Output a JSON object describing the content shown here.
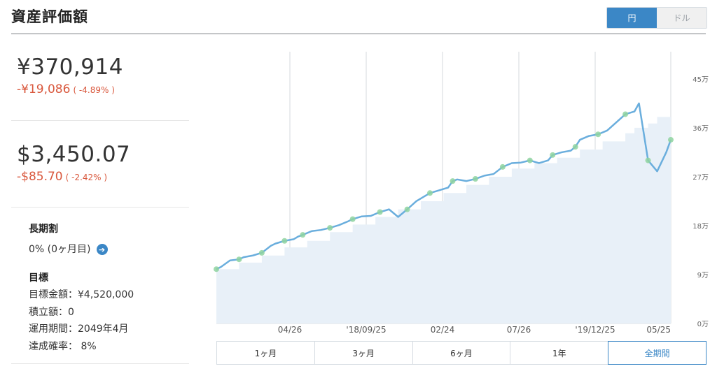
{
  "title": "資産評価額",
  "currency_toggle": {
    "options": [
      "円",
      "ドル"
    ],
    "selected": "円"
  },
  "jpy": {
    "value": "¥370,914",
    "change": "-¥19,086",
    "change_pct": "( -4.89% )"
  },
  "usd": {
    "value": "$3,450.07",
    "change": "-$85.70",
    "change_pct": "( -2.42% )"
  },
  "long_term": {
    "title": "長期割",
    "text": "0% (0ヶ月目)"
  },
  "goal": {
    "title": "目標",
    "lines": [
      "目標金額：¥4,520,000",
      "積立額：0",
      "運用期間：2049年4月",
      "達成確率： 8%"
    ]
  },
  "periods": [
    "1ヶ月",
    "3ヶ月",
    "6ヶ月",
    "1年",
    "全期間"
  ],
  "selected_period": "全期間",
  "colors": {
    "accent": "#3b87c6",
    "negative": "#d9573c",
    "line": "#6aaedd",
    "area": "#e8f0f8",
    "marker": "#8fd3a0"
  },
  "chart_data": {
    "type": "area",
    "x_tick_labels": [
      "04/26",
      "'18/09/25",
      "02/24",
      "07/26",
      "'19/12/25",
      "05/25"
    ],
    "y_tick_labels": [
      "0万",
      "9万",
      "18万",
      "27万",
      "36万",
      "45万"
    ],
    "ylim": [
      0,
      450000
    ],
    "grid": "vertical",
    "series": [
      {
        "role": "valuation",
        "x": [
          0,
          1,
          3,
          5,
          6,
          8,
          10,
          12,
          13,
          15,
          17,
          18,
          19,
          21,
          23,
          25,
          27,
          29,
          30,
          32,
          34,
          36,
          38,
          40,
          42,
          44,
          45,
          47,
          49,
          51,
          52,
          53,
          55,
          57,
          59,
          61,
          63,
          65,
          67,
          69,
          71,
          73,
          74,
          76,
          78,
          79,
          80,
          82,
          84,
          86,
          88,
          90,
          92,
          93,
          95,
          97,
          99,
          100
        ],
        "y": [
          100000,
          104000,
          116000,
          118000,
          122000,
          125000,
          130000,
          143000,
          147000,
          152000,
          155000,
          160000,
          163000,
          170000,
          172000,
          176000,
          181000,
          188000,
          192000,
          197000,
          198000,
          205000,
          210000,
          196000,
          210000,
          225000,
          230000,
          240000,
          245000,
          250000,
          262000,
          265000,
          262000,
          266000,
          272000,
          275000,
          288000,
          295000,
          296000,
          300000,
          295000,
          300000,
          310000,
          315000,
          318000,
          325000,
          338000,
          345000,
          348000,
          355000,
          370000,
          385000,
          390000,
          405000,
          300000,
          280000,
          315000,
          338000
        ]
      },
      {
        "role": "principal",
        "x": [
          0,
          5,
          10,
          15,
          20,
          25,
          30,
          35,
          40,
          45,
          50,
          55,
          60,
          65,
          70,
          75,
          80,
          85,
          90,
          92,
          95,
          97,
          100
        ],
        "y": [
          100000,
          112000,
          125000,
          140000,
          152000,
          168000,
          182000,
          196000,
          210000,
          225000,
          240000,
          255000,
          270000,
          285000,
          295000,
          305000,
          320000,
          335000,
          350000,
          360000,
          368000,
          380000,
          385000
        ]
      }
    ]
  }
}
